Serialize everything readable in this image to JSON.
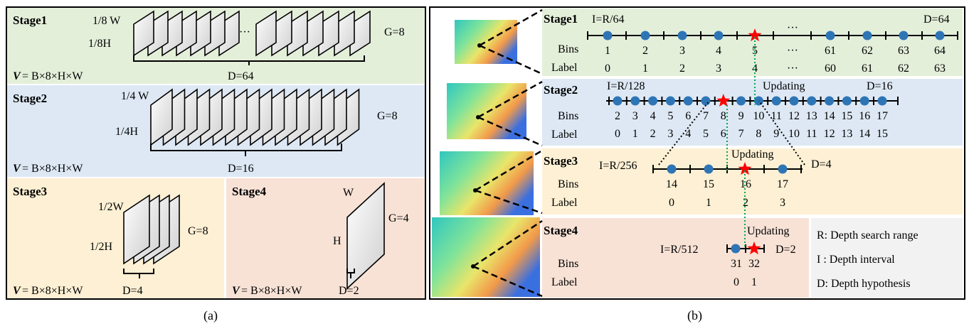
{
  "panel_a": {
    "caption": "(a)",
    "stages": [
      {
        "title": "Stage1",
        "width_label": "1/8 W",
        "height_label": "1/8H",
        "group_label": "G=8",
        "depth_label": "D=64",
        "volume_prefix": "V",
        "volume_formula": "= B×8×H×W",
        "dots": "···",
        "bg": "#e4efda"
      },
      {
        "title": "Stage2",
        "width_label": "1/4 W",
        "height_label": "1/4H",
        "group_label": "G=8",
        "depth_label": "D=16",
        "volume_prefix": "V",
        "volume_formula": "= B×8×H×W",
        "bg": "#dde8f4"
      },
      {
        "title": "Stage3",
        "width_label": "1/2W",
        "height_label": "1/2H",
        "group_label": "G=8",
        "depth_label": "D=4",
        "volume_prefix": "V",
        "volume_formula": "= B×8×H×W",
        "bg": "#fdf0d4"
      },
      {
        "title": "Stage4",
        "width_label": "W",
        "height_label": "H",
        "group_label": "G=4",
        "depth_label": "D=2",
        "volume_prefix": "V",
        "volume_formula": "= B×8×H×W",
        "bg": "#f8e2d6"
      }
    ]
  },
  "panel_b": {
    "caption": "(b)",
    "row_labels": {
      "bins": "Bins",
      "label": "Label"
    },
    "updating": "Updating",
    "stages": [
      {
        "title": "Stage1",
        "interval": "I=R/64",
        "depth": "D=64",
        "bins": [
          "1",
          "2",
          "3",
          "4",
          "5",
          "···",
          "61",
          "62",
          "63",
          "64"
        ],
        "labels": [
          "0",
          "1",
          "2",
          "3",
          "4",
          "···",
          "60",
          "61",
          "62",
          "63"
        ],
        "dots": "···",
        "bg": "#e4efda"
      },
      {
        "title": "Stage2",
        "interval": "I=R/128",
        "depth": "D=16",
        "bins": [
          "2",
          "3",
          "4",
          "5",
          "6",
          "7",
          "8",
          "9",
          "10",
          "11",
          "12",
          "13",
          "14",
          "15",
          "16",
          "17"
        ],
        "labels": [
          "0",
          "1",
          "2",
          "3",
          "4",
          "5",
          "6",
          "7",
          "8",
          "9",
          "10",
          "11",
          "12",
          "13",
          "14",
          "15"
        ],
        "bg": "#dde8f4"
      },
      {
        "title": "Stage3",
        "interval": "I=R/256",
        "depth": "D=4",
        "bins": [
          "14",
          "15",
          "16",
          "17"
        ],
        "labels": [
          "0",
          "1",
          "2",
          "3"
        ],
        "bg": "#fdf0d4"
      },
      {
        "title": "Stage4",
        "interval": "I=R/512",
        "depth": "D=2",
        "bins": [
          "31",
          "32"
        ],
        "labels": [
          "0",
          "1"
        ],
        "bg": "#f8e2d6"
      }
    ],
    "legend": {
      "items": [
        "R: Depth search range",
        "I : Depth interval",
        "D: Depth hypothesis"
      ],
      "bg": "#f2f2f2"
    }
  },
  "colors": {
    "dot": "#2e75b6",
    "star": "#ff0000",
    "guide": "#00a651"
  }
}
